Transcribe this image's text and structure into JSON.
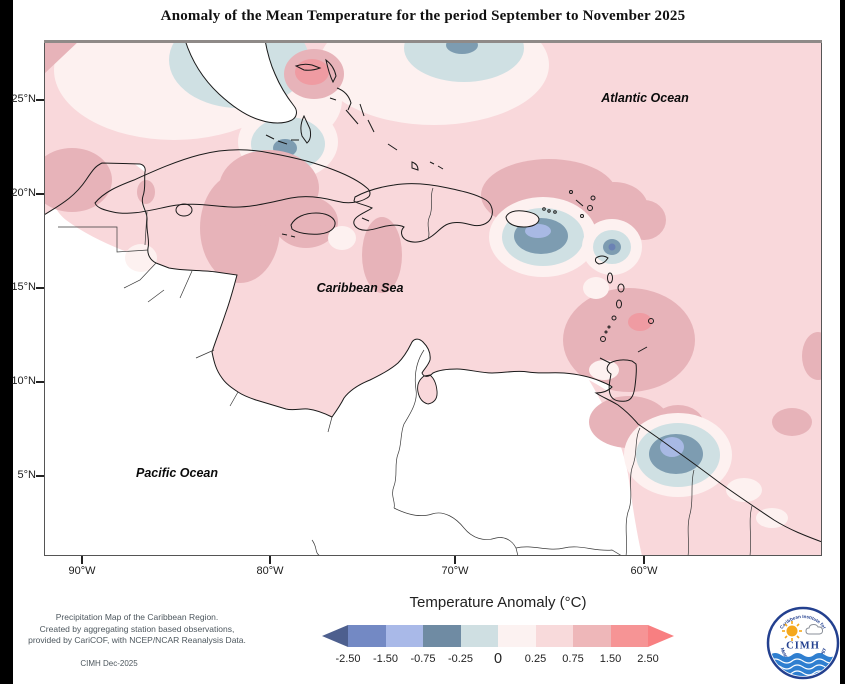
{
  "title": "Anomaly of the Mean Temperature for the period September to November 2025",
  "map": {
    "lat_ticks": [
      "25°N",
      "20°N",
      "15°N",
      "10°N",
      "5°N"
    ],
    "lon_ticks": [
      "90°W",
      "80°W",
      "70°W",
      "60°W"
    ],
    "ocean_labels": {
      "atlantic": "Atlantic Ocean",
      "caribbean": "Caribbean Sea",
      "pacific": "Pacific Ocean"
    }
  },
  "legend": {
    "title": "Temperature Anomaly (°C)",
    "tick_labels": [
      "-2.50",
      "-1.50",
      "-0.75",
      "-0.25",
      "0",
      "0.25",
      "0.75",
      "1.50",
      "2.50"
    ],
    "segment_colors": [
      "#7389c4",
      "#a9b9e8",
      "#6f8ba3",
      "#cfdfe2",
      "#fcf2f1",
      "#f8dadb",
      "#eeb7b9",
      "#f69495"
    ],
    "arrow_left_color": "#4d5f8e",
    "arrow_right_color": "#f87f81"
  },
  "anomaly_palette": {
    "pos_025_075": "#f9d8db",
    "pos_075_150": "#e7b3b9",
    "pos_150_250": "#ef9ba2",
    "pos_000_025": "#fdf1f0",
    "neg_025_000": "#cfe0e3",
    "neg_075_025": "#7d9cb1",
    "neg_150_075": "#a8b9e4",
    "neg_250_150": "#6b82b4"
  },
  "footer": {
    "lines": [
      "Precipitation Map of the Caribbean Region.",
      "Created by aggregating station based observations,",
      "provided by CariCOF, with NCEP/NCAR Reanalysis Data."
    ],
    "credit": "CIMH Dec-2025"
  },
  "logo": {
    "acronym": "CIMH",
    "arc_top": "Caribbean Institute for",
    "arc_bottom": "Meteorology and Hydrology"
  }
}
